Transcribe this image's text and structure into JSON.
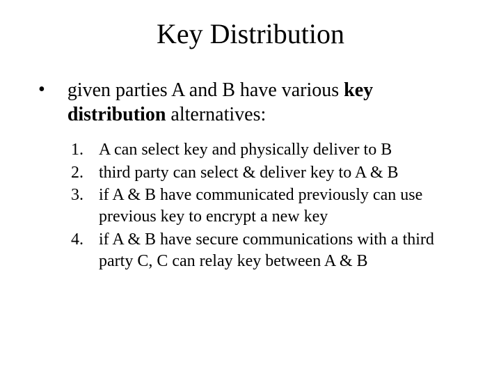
{
  "slide": {
    "title": "Key Distribution",
    "title_fontsize": 40,
    "bullet_marker": "•",
    "intro_before_bold": "given parties A and B have various ",
    "intro_bold": "key distribution",
    "intro_after_bold": " alternatives:",
    "body_fontsize": 28,
    "items": [
      {
        "num": "1.",
        "text": "A can select key and physically deliver to B"
      },
      {
        "num": "2.",
        "text": "third party can select & deliver key to A & B"
      },
      {
        "num": "3.",
        "text": "if A & B have communicated previously can use previous key to encrypt a new key"
      },
      {
        "num": "4.",
        "text": "if A & B have secure communications with a third party C, C can relay key between A & B"
      }
    ],
    "list_fontsize": 24,
    "background_color": "#ffffff",
    "text_color": "#000000",
    "font_family": "Times New Roman"
  }
}
